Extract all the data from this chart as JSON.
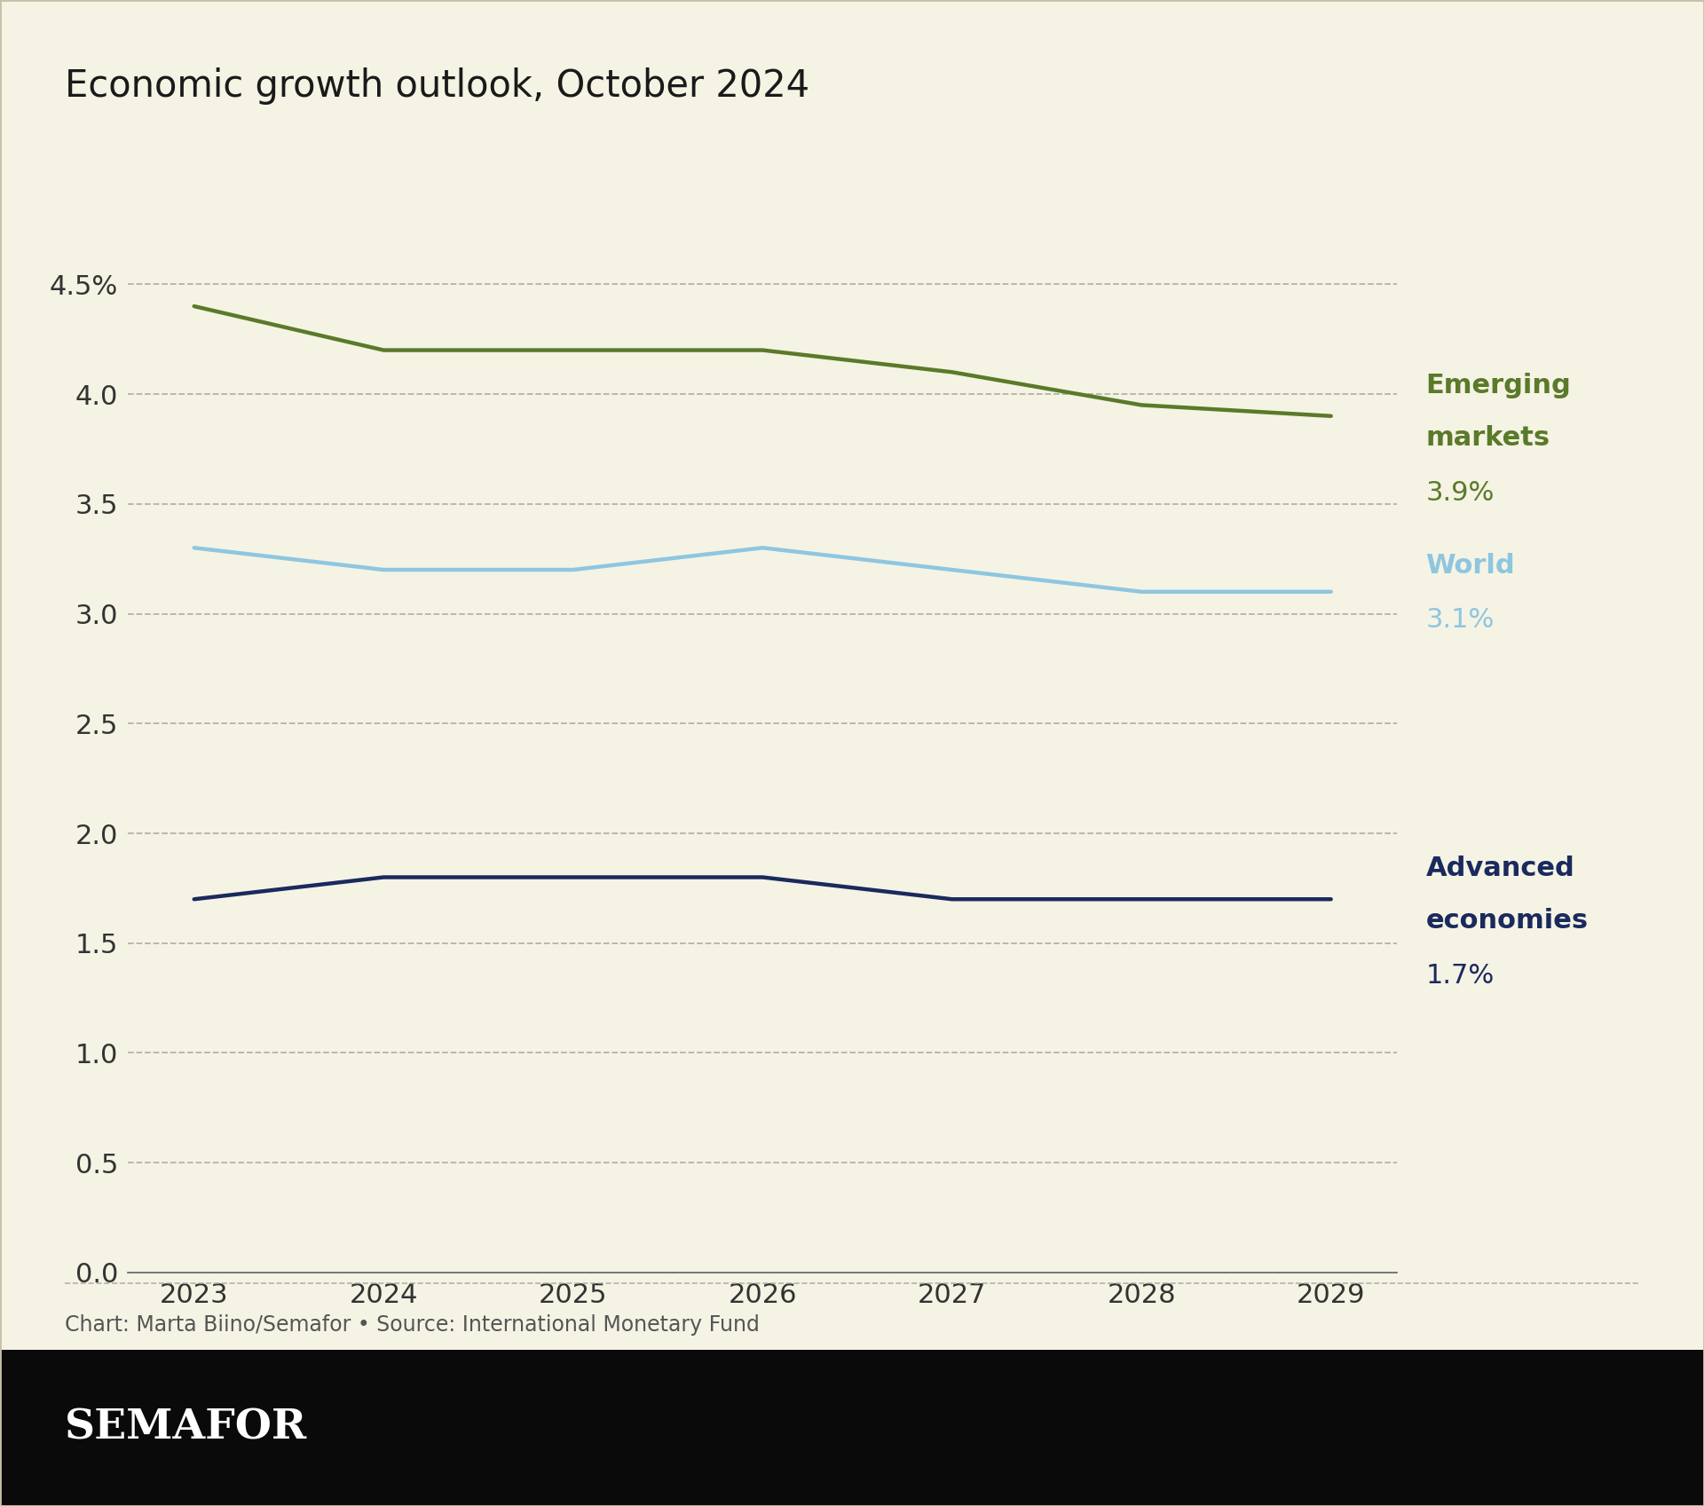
{
  "title": "Economic growth outlook, October 2024",
  "years": [
    2023,
    2024,
    2025,
    2026,
    2027,
    2028,
    2029
  ],
  "emerging_markets": [
    4.4,
    4.2,
    4.2,
    4.2,
    4.1,
    3.95,
    3.9
  ],
  "world": [
    3.3,
    3.2,
    3.2,
    3.3,
    3.2,
    3.1,
    3.1
  ],
  "advanced_economies": [
    1.7,
    1.8,
    1.8,
    1.8,
    1.7,
    1.7,
    1.7
  ],
  "emerging_color": "#5a7a2a",
  "world_color": "#8ec6e0",
  "advanced_color": "#1a2a5e",
  "background_color": "#f5f3e4",
  "label_emerging_line1": "Emerging",
  "label_emerging_line2": "markets",
  "label_emerging_pct": "3.9%",
  "label_world": "World",
  "label_world_pct": "3.1%",
  "label_advanced_line1": "Advanced",
  "label_advanced_line2": "economies",
  "label_advanced_pct": "1.7%",
  "ylim": [
    0.0,
    4.8
  ],
  "yticks": [
    0.0,
    0.5,
    1.0,
    1.5,
    2.0,
    2.5,
    3.0,
    3.5,
    4.0,
    4.5
  ],
  "source_text": "Chart: Marta Biino/Semafor • Source: International Monetary Fund",
  "footer_text": "SEMAFOR",
  "line_width": 3.2,
  "title_fontsize": 30,
  "tick_fontsize": 22,
  "label_fontsize": 22,
  "source_fontsize": 17,
  "footer_fontsize": 34,
  "grid_color": "#aaa89a",
  "border_color": "#c8c0a8",
  "text_color": "#1a1a1a",
  "source_color": "#555555"
}
